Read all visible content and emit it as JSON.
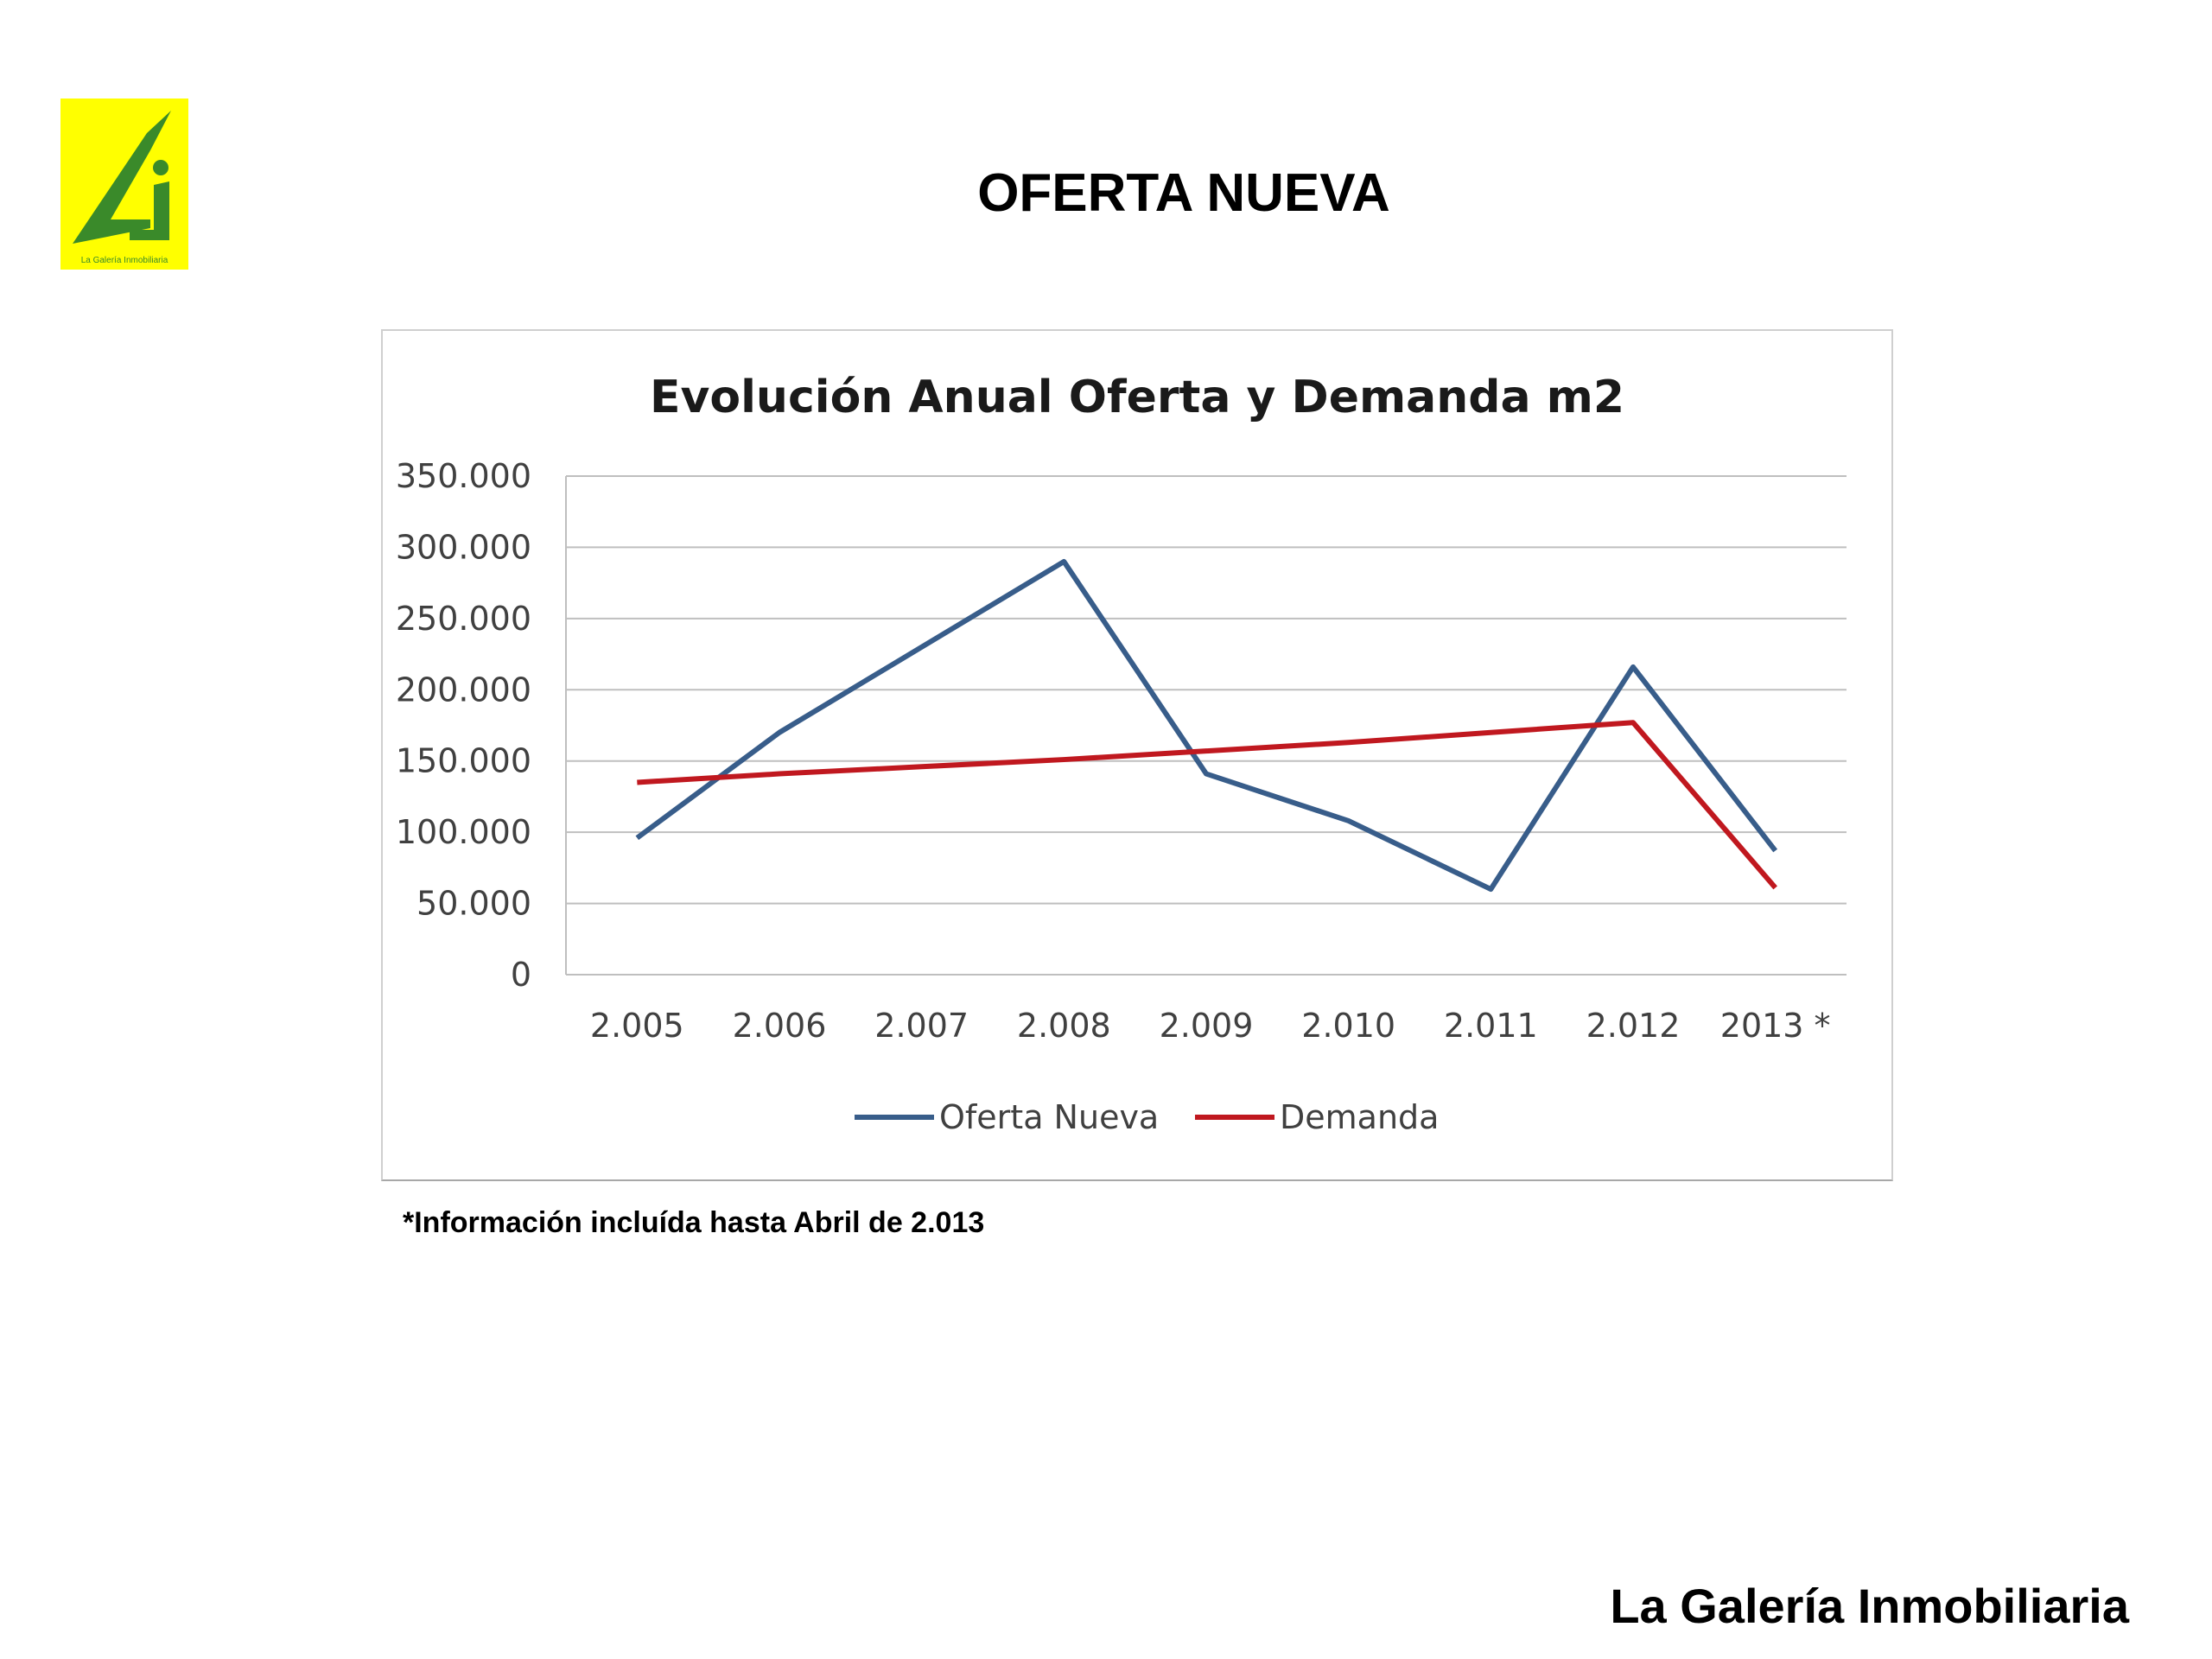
{
  "slide": {
    "title": "OFERTA NUEVA",
    "footnote": "*Información incluída hasta Abril de 2.013",
    "brand": "La Galería Inmobiliaria",
    "logo_caption": "La Galería Inmobiliaria"
  },
  "colors": {
    "logo_bg": "#ffff00",
    "logo_green": "#3a8a2a",
    "oferta": "#385d8a",
    "demanda": "#c0181f",
    "grid": "#bfbfbf"
  },
  "chart_data": {
    "type": "line",
    "title": "Evolución Anual Oferta y Demanda m2",
    "categories": [
      "2.005",
      "2.006",
      "2.007",
      "2.008",
      "2.009",
      "2.010",
      "2.011",
      "2.012",
      "2013 *"
    ],
    "series": [
      {
        "name": "Oferta Nueva",
        "values": [
          96000,
          170000,
          230000,
          290000,
          141000,
          108000,
          60000,
          216000,
          87000
        ]
      },
      {
        "name": "Demanda",
        "values": [
          135000,
          141000,
          146000,
          151000,
          157000,
          163000,
          170000,
          177000,
          61000
        ]
      }
    ],
    "ylim": [
      0,
      350000
    ],
    "yticks": [
      "0",
      "50.000",
      "100.000",
      "150.000",
      "200.000",
      "250.000",
      "300.000",
      "350.000"
    ],
    "ytick_values": [
      0,
      50000,
      100000,
      150000,
      200000,
      250000,
      300000,
      350000
    ],
    "grid": true,
    "legend_position": "bottom"
  }
}
